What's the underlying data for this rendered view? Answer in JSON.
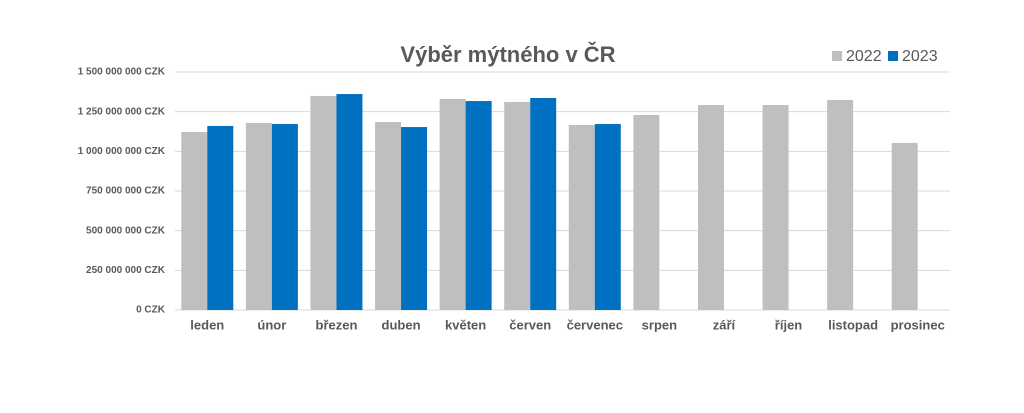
{
  "chart_data": {
    "type": "bar",
    "title": "Výběr mýtného v ČR",
    "categories": [
      "leden",
      "únor",
      "březen",
      "duben",
      "květen",
      "červen",
      "červenec",
      "srpen",
      "září",
      "říjen",
      "listopad",
      "prosinec"
    ],
    "series": [
      {
        "name": "2022",
        "color": "#bfbfbf",
        "values": [
          1122000000,
          1179000000,
          1349000000,
          1185000000,
          1330000000,
          1311000000,
          1166000000,
          1229000000,
          1292000000,
          1292000000,
          1324000000,
          1053000000
        ]
      },
      {
        "name": "2023",
        "color": "#0070c0",
        "values": [
          1160000000,
          1172000000,
          1361000000,
          1153000000,
          1317000000,
          1336000000,
          1172000000,
          null,
          null,
          null,
          null,
          null
        ]
      }
    ],
    "ylim": [
      0,
      1500000000
    ],
    "yticks": [
      {
        "value": 0,
        "label": "0 CZK"
      },
      {
        "value": 250000000,
        "label": "250 000 000 CZK"
      },
      {
        "value": 500000000,
        "label": "500 000 000 CZK"
      },
      {
        "value": 750000000,
        "label": "750 000 000 CZK"
      },
      {
        "value": 1000000000,
        "label": "1 000 000 000 CZK"
      },
      {
        "value": 1250000000,
        "label": "1 250 000 000 CZK"
      },
      {
        "value": 1500000000,
        "label": "1 500 000 000 CZK"
      }
    ],
    "grid": true,
    "legend": "top-right"
  }
}
